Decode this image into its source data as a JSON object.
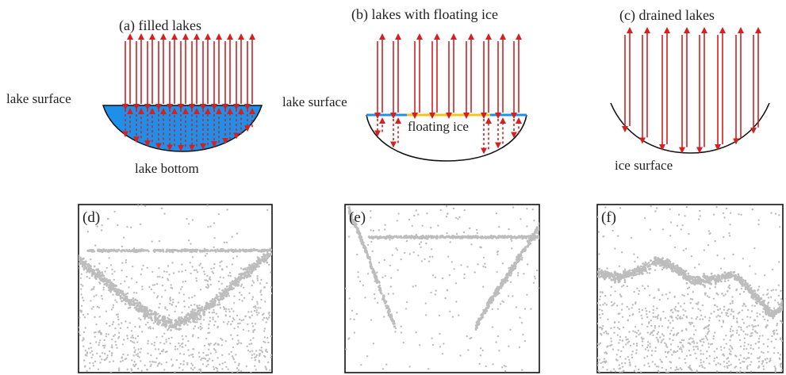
{
  "figure": {
    "panel_a": {
      "title": "(a) filled lakes",
      "left_label": "lake surface",
      "bottom_label": "lake bottom"
    },
    "panel_b": {
      "title": "(b) lakes with floating ice",
      "left_label": "lake surface",
      "inner_label": "floating ice"
    },
    "panel_c": {
      "title": "(c) drained lakes",
      "bottom_label": "ice surface"
    },
    "panel_d": {
      "label": "(d)"
    },
    "panel_e": {
      "label": "(e)"
    },
    "panel_f": {
      "label": "(f)"
    }
  },
  "colors": {
    "arrow": "#d42020",
    "water": "#1e90ea",
    "floating_ice": "#f0c419",
    "lake_outline": "#111111",
    "photon_points": "#bdbdbd",
    "frame": "#111111"
  }
}
